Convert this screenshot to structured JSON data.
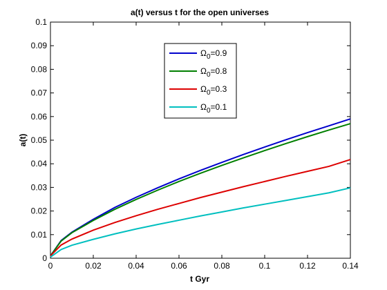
{
  "chart_data": {
    "type": "line",
    "title": "a(t) versus t for the open universes",
    "xlabel": "t Gyr",
    "ylabel": "a(t)",
    "xlim": [
      0,
      0.14
    ],
    "ylim": [
      0,
      0.1
    ],
    "xticks": [
      "0",
      "0.02",
      "0.04",
      "0.06",
      "0.08",
      "0.1",
      "0.12",
      "0.14"
    ],
    "yticks": [
      "0",
      "0.01",
      "0.02",
      "0.03",
      "0.04",
      "0.05",
      "0.06",
      "0.07",
      "0.08",
      "0.09",
      "0.1"
    ],
    "grid": false,
    "legend_position": "top-center",
    "x": [
      0,
      0.005,
      0.01,
      0.02,
      0.03,
      0.04,
      0.05,
      0.06,
      0.07,
      0.08,
      0.09,
      0.1,
      0.11,
      0.12,
      0.13,
      0.14
    ],
    "series": [
      {
        "name_symbol": "Ω",
        "name_sub": "0",
        "name_value": "=0.9",
        "color": "#0000cc",
        "values": [
          0.001,
          0.0075,
          0.011,
          0.0165,
          0.0215,
          0.0258,
          0.0298,
          0.0336,
          0.0372,
          0.0406,
          0.0439,
          0.0471,
          0.0502,
          0.0532,
          0.0561,
          0.059
        ]
      },
      {
        "name_symbol": "Ω",
        "name_sub": "0",
        "name_value": "=0.8",
        "color": "#007f00",
        "values": [
          0.001,
          0.0073,
          0.0108,
          0.016,
          0.0207,
          0.0249,
          0.0288,
          0.0325,
          0.036,
          0.0393,
          0.0425,
          0.0456,
          0.0486,
          0.0515,
          0.0543,
          0.057
        ]
      },
      {
        "name_symbol": "Ω",
        "name_sub": "0",
        "name_value": "=0.3",
        "color": "#dd0000",
        "values": [
          0.001,
          0.0056,
          0.0081,
          0.0119,
          0.0151,
          0.018,
          0.0207,
          0.0232,
          0.0257,
          0.028,
          0.0303,
          0.0325,
          0.0347,
          0.0368,
          0.0389,
          0.0418
        ]
      },
      {
        "name_symbol": "Ω",
        "name_sub": "0",
        "name_value": "=0.1",
        "color": "#00bfbf",
        "values": [
          0.0005,
          0.0037,
          0.0055,
          0.008,
          0.0103,
          0.0124,
          0.0143,
          0.0161,
          0.0179,
          0.0196,
          0.0213,
          0.0229,
          0.0245,
          0.0261,
          0.0277,
          0.0298
        ]
      }
    ]
  }
}
